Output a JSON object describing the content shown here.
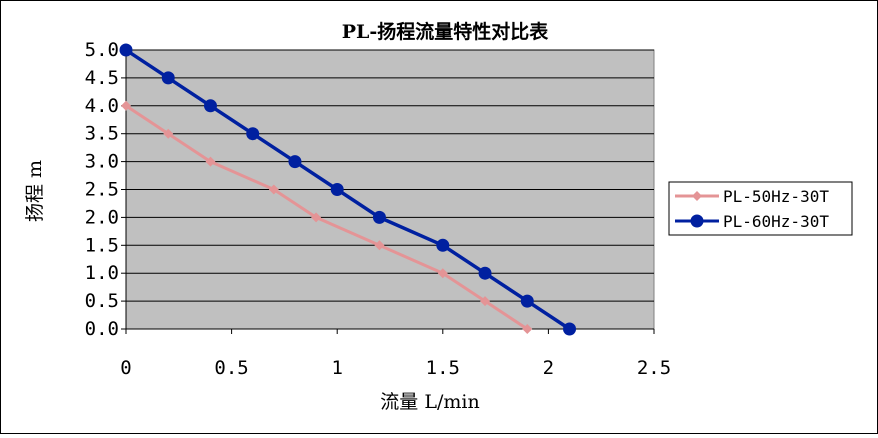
{
  "chart_data": {
    "type": "line",
    "title": "PL-扬程流量特性对比表",
    "xlabel": "流量  L/min",
    "ylabel": "扬程 m",
    "xlim": [
      0,
      2.5
    ],
    "ylim": [
      0,
      5
    ],
    "xticks": [
      "0",
      "0.5",
      "1",
      "1.5",
      "2",
      "2.5"
    ],
    "yticks": [
      "0.0",
      "0.5",
      "1.0",
      "1.5",
      "2.0",
      "2.5",
      "3.0",
      "3.5",
      "4.0",
      "4.5",
      "5.0"
    ],
    "grid": "horizontal",
    "plot_background": "#c0c0c0",
    "legend_position": "right",
    "series": [
      {
        "name": "PL-50Hz-30T",
        "color": "#e49496",
        "marker": "diamond",
        "x": [
          0,
          0.2,
          0.4,
          0.7,
          0.9,
          1.2,
          1.5,
          1.7,
          1.9
        ],
        "y": [
          4.0,
          3.5,
          3.0,
          2.5,
          2.0,
          1.5,
          1.0,
          0.5,
          0.0
        ]
      },
      {
        "name": "PL-60Hz-30T",
        "color": "#0020a0",
        "marker": "circle",
        "x": [
          0,
          0.2,
          0.4,
          0.6,
          0.8,
          1.0,
          1.2,
          1.5,
          1.7,
          1.9,
          2.1
        ],
        "y": [
          5.0,
          4.5,
          4.0,
          3.5,
          3.0,
          2.5,
          2.0,
          1.5,
          1.0,
          0.5,
          0.0
        ]
      }
    ]
  }
}
